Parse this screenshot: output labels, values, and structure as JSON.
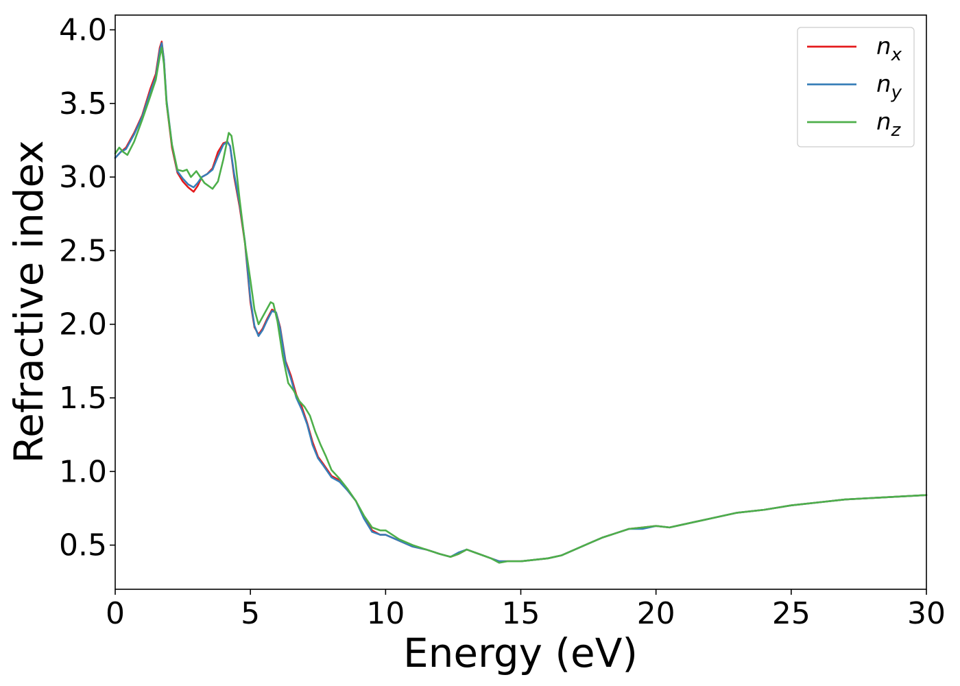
{
  "chart_data": {
    "type": "line",
    "title": "",
    "xlabel": "Energy (eV)",
    "ylabel": "Refractive index",
    "xlim": [
      0,
      30
    ],
    "ylim": [
      0.2,
      4.1
    ],
    "xticks": [
      "0",
      "5",
      "10",
      "15",
      "20",
      "25",
      "30"
    ],
    "yticks": [
      "0.5",
      "1.0",
      "1.5",
      "2.0",
      "2.5",
      "3.0",
      "3.5",
      "4.0"
    ],
    "grid": false,
    "legend_position": "top-right",
    "series": [
      {
        "name_base": "n",
        "name_sub": "x",
        "color": "#e41a1c",
        "x": [
          0,
          0.2,
          0.4,
          0.7,
          1.0,
          1.3,
          1.5,
          1.65,
          1.72,
          1.8,
          1.9,
          2.1,
          2.3,
          2.5,
          2.7,
          2.9,
          3.05,
          3.2,
          3.4,
          3.6,
          3.8,
          4.0,
          4.15,
          4.25,
          4.4,
          4.6,
          4.8,
          5.0,
          5.15,
          5.3,
          5.45,
          5.6,
          5.8,
          5.95,
          6.1,
          6.3,
          6.5,
          6.7,
          6.9,
          7.1,
          7.3,
          7.5,
          7.7,
          8.0,
          8.3,
          8.6,
          8.9,
          9.2,
          9.5,
          9.8,
          10.0,
          10.5,
          11.0,
          11.5,
          12.0,
          12.4,
          12.7,
          13.0,
          13.3,
          13.6,
          13.9,
          14.2,
          14.5,
          15.0,
          15.5,
          16.0,
          16.5,
          17.0,
          17.5,
          18.0,
          18.5,
          19.0,
          19.5,
          20.0,
          20.5,
          21.0,
          22.0,
          23.0,
          24.0,
          25.0,
          26.0,
          27.0,
          28.0,
          29.0,
          30.0
        ],
        "values": [
          3.13,
          3.17,
          3.2,
          3.3,
          3.42,
          3.6,
          3.7,
          3.88,
          3.92,
          3.8,
          3.5,
          3.2,
          3.03,
          2.97,
          2.93,
          2.9,
          2.94,
          3.0,
          3.02,
          3.06,
          3.17,
          3.23,
          3.24,
          3.21,
          3.0,
          2.8,
          2.55,
          2.15,
          1.98,
          1.93,
          1.97,
          2.03,
          2.1,
          2.08,
          1.98,
          1.75,
          1.65,
          1.52,
          1.44,
          1.33,
          1.2,
          1.1,
          1.05,
          0.97,
          0.94,
          0.87,
          0.8,
          0.69,
          0.6,
          0.57,
          0.57,
          0.53,
          0.49,
          0.47,
          0.44,
          0.42,
          0.44,
          0.47,
          0.45,
          0.43,
          0.41,
          0.39,
          0.39,
          0.39,
          0.4,
          0.41,
          0.43,
          0.47,
          0.51,
          0.55,
          0.58,
          0.61,
          0.62,
          0.63,
          0.62,
          0.64,
          0.68,
          0.72,
          0.74,
          0.77,
          0.79,
          0.81,
          0.82,
          0.83,
          0.84
        ]
      },
      {
        "name_base": "n",
        "name_sub": "y",
        "color": "#377eb8",
        "x": [
          0,
          0.2,
          0.4,
          0.7,
          1.0,
          1.3,
          1.5,
          1.65,
          1.72,
          1.8,
          1.9,
          2.1,
          2.3,
          2.5,
          2.7,
          2.9,
          3.05,
          3.2,
          3.4,
          3.6,
          3.8,
          4.0,
          4.15,
          4.25,
          4.4,
          4.6,
          4.8,
          5.0,
          5.15,
          5.3,
          5.45,
          5.6,
          5.8,
          5.95,
          6.1,
          6.3,
          6.5,
          6.7,
          6.9,
          7.1,
          7.3,
          7.5,
          7.7,
          8.0,
          8.3,
          8.6,
          8.9,
          9.2,
          9.5,
          9.8,
          10.0,
          10.5,
          11.0,
          11.5,
          12.0,
          12.4,
          12.7,
          13.0,
          13.3,
          13.6,
          13.9,
          14.2,
          14.5,
          15.0,
          15.5,
          16.0,
          16.5,
          17.0,
          17.5,
          18.0,
          18.5,
          19.0,
          19.5,
          20.0,
          20.5,
          21.0,
          22.0,
          23.0,
          24.0,
          25.0,
          26.0,
          27.0,
          28.0,
          29.0,
          30.0
        ],
        "values": [
          3.13,
          3.17,
          3.19,
          3.29,
          3.41,
          3.58,
          3.68,
          3.86,
          3.91,
          3.8,
          3.52,
          3.22,
          3.04,
          2.99,
          2.95,
          2.93,
          2.96,
          3.0,
          3.02,
          3.05,
          3.14,
          3.22,
          3.24,
          3.21,
          3.02,
          2.82,
          2.56,
          2.17,
          1.99,
          1.92,
          1.96,
          2.02,
          2.09,
          2.08,
          1.97,
          1.74,
          1.63,
          1.5,
          1.42,
          1.32,
          1.18,
          1.09,
          1.04,
          0.96,
          0.93,
          0.87,
          0.8,
          0.68,
          0.59,
          0.57,
          0.57,
          0.53,
          0.49,
          0.47,
          0.44,
          0.42,
          0.45,
          0.47,
          0.45,
          0.43,
          0.41,
          0.39,
          0.39,
          0.39,
          0.4,
          0.41,
          0.43,
          0.47,
          0.51,
          0.55,
          0.58,
          0.61,
          0.61,
          0.63,
          0.62,
          0.64,
          0.68,
          0.72,
          0.74,
          0.77,
          0.79,
          0.81,
          0.82,
          0.83,
          0.84
        ]
      },
      {
        "name_base": "n",
        "name_sub": "z",
        "color": "#4daf4a",
        "x": [
          0,
          0.15,
          0.3,
          0.45,
          0.7,
          1.0,
          1.3,
          1.5,
          1.65,
          1.72,
          1.8,
          1.9,
          2.1,
          2.3,
          2.5,
          2.65,
          2.8,
          3.0,
          3.15,
          3.3,
          3.45,
          3.6,
          3.8,
          4.0,
          4.2,
          4.3,
          4.45,
          4.6,
          4.8,
          5.0,
          5.15,
          5.3,
          5.45,
          5.6,
          5.75,
          5.85,
          6.0,
          6.2,
          6.4,
          6.6,
          6.8,
          7.0,
          7.2,
          7.4,
          7.6,
          7.8,
          8.0,
          8.3,
          8.6,
          8.9,
          9.2,
          9.5,
          9.8,
          10.0,
          10.5,
          11.0,
          11.5,
          12.0,
          12.4,
          12.7,
          13.0,
          13.3,
          13.6,
          13.9,
          14.2,
          14.5,
          15.0,
          15.5,
          16.0,
          16.5,
          17.0,
          17.5,
          18.0,
          18.5,
          19.0,
          19.5,
          20.0,
          20.5,
          21.0,
          22.0,
          23.0,
          24.0,
          25.0,
          26.0,
          27.0,
          28.0,
          29.0,
          30.0
        ],
        "values": [
          3.16,
          3.2,
          3.17,
          3.15,
          3.24,
          3.39,
          3.55,
          3.66,
          3.82,
          3.88,
          3.77,
          3.5,
          3.22,
          3.05,
          3.04,
          3.05,
          3.0,
          3.04,
          3.0,
          2.96,
          2.94,
          2.92,
          2.97,
          3.12,
          3.3,
          3.28,
          3.1,
          2.85,
          2.55,
          2.3,
          2.1,
          2.0,
          2.05,
          2.1,
          2.15,
          2.14,
          2.02,
          1.78,
          1.6,
          1.55,
          1.48,
          1.44,
          1.38,
          1.27,
          1.18,
          1.1,
          1.01,
          0.95,
          0.88,
          0.8,
          0.7,
          0.62,
          0.6,
          0.6,
          0.54,
          0.5,
          0.47,
          0.44,
          0.42,
          0.44,
          0.47,
          0.45,
          0.43,
          0.41,
          0.38,
          0.39,
          0.39,
          0.4,
          0.41,
          0.43,
          0.47,
          0.51,
          0.55,
          0.58,
          0.61,
          0.62,
          0.63,
          0.62,
          0.64,
          0.68,
          0.72,
          0.74,
          0.77,
          0.79,
          0.81,
          0.82,
          0.83,
          0.84
        ]
      }
    ]
  }
}
